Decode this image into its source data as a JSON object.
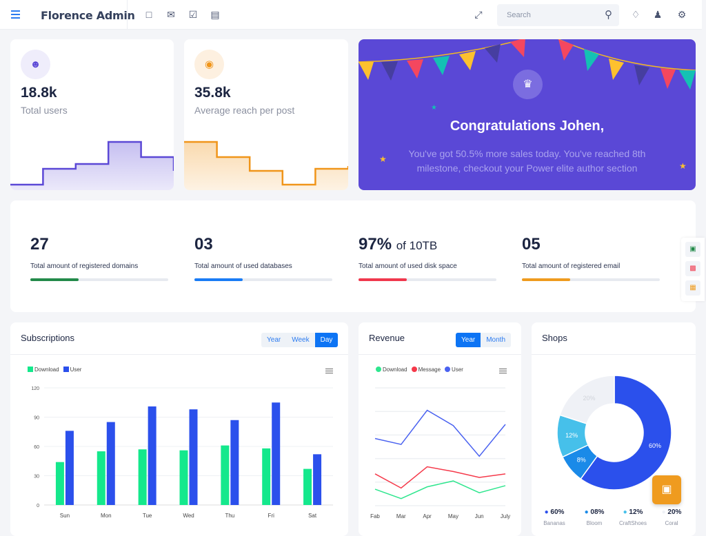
{
  "header": {
    "brand": "Florence Admin",
    "search_placeholder": "Search",
    "icons": [
      "menu-icon",
      "chat-icon",
      "mail-icon",
      "checkbox-icon",
      "calendar-icon",
      "fullscreen-icon",
      "search-icon",
      "bell-icon",
      "user-icon",
      "gear-icon"
    ]
  },
  "cards": [
    {
      "value": "18.8k",
      "label": "Total users",
      "color": "#5b48d6",
      "sparkline": [
        8,
        31,
        38,
        70,
        48,
        28
      ]
    },
    {
      "value": "35.8k",
      "label": "Average reach per post",
      "color": "#f0951a",
      "sparkline": [
        70,
        48,
        28,
        8,
        31,
        35
      ]
    }
  ],
  "banner": {
    "title": "Congratulations Johen,",
    "text": "You've got 50.5% more sales today. You've reached 8th milestone, checkout your Power elite author section",
    "color": "#5a48d6"
  },
  "stats": [
    {
      "value": "27",
      "suffix": "",
      "label": "Total amount of registered domains",
      "progress": 35,
      "color": "#238a4a"
    },
    {
      "value": "03",
      "suffix": "",
      "label": "Total amount of used databases",
      "progress": 35,
      "color": "#1a7cf5"
    },
    {
      "value": "97%",
      "suffix": "of 10TB",
      "label": "Total amount of used disk space",
      "progress": 35,
      "color": "#f0384d"
    },
    {
      "value": "05",
      "suffix": "",
      "label": "Total amount of registered email",
      "progress": 35,
      "color": "#ef9b1f"
    }
  ],
  "subscriptions": {
    "title": "Subscriptions",
    "tabs": [
      "Year",
      "Week",
      "Day"
    ],
    "active": "Day"
  },
  "revenue": {
    "title": "Revenue",
    "tabs": [
      "Year",
      "Month"
    ],
    "active": "Year"
  },
  "shops": {
    "title": "Shops"
  },
  "chart_data": [
    {
      "type": "bar",
      "categories": [
        "Sun",
        "Mon",
        "Tue",
        "Wed",
        "Thu",
        "Fri",
        "Sat"
      ],
      "series": [
        {
          "name": "Download",
          "color": "#14e88c",
          "values": [
            44,
            55,
            57,
            56,
            61,
            58,
            37
          ]
        },
        {
          "name": "User",
          "color": "#2b50ec",
          "values": [
            76,
            85,
            101,
            98,
            87,
            105,
            52
          ]
        }
      ],
      "ylim": [
        0,
        120
      ],
      "yticks": [
        0,
        30,
        60,
        90,
        120
      ],
      "grid": true,
      "legend": "top-left"
    },
    {
      "type": "line",
      "categories": [
        "Fab",
        "Mar",
        "Apr",
        "May",
        "Jun",
        "July"
      ],
      "series": [
        {
          "name": "Download",
          "color": "#2ee68e",
          "values": [
            14,
            6,
            16,
            21,
            11,
            17
          ]
        },
        {
          "name": "Message",
          "color": "#f5394a",
          "values": [
            27,
            15,
            33,
            29,
            24,
            27
          ]
        },
        {
          "name": "User",
          "color": "#4a62f0",
          "values": [
            57,
            52,
            81,
            68,
            42,
            69
          ]
        }
      ],
      "ylim": [
        0,
        100
      ],
      "grid": true,
      "legend": "top-left"
    },
    {
      "type": "pie",
      "donut": true,
      "slices": [
        {
          "label": "Bananas",
          "value": 60,
          "text": "60%",
          "legend_value": "60%",
          "color": "#2b50ec"
        },
        {
          "label": "Bloom",
          "value": 8,
          "text": "8%",
          "legend_value": "08%",
          "color": "#1a8ae8"
        },
        {
          "label": "CraftShoes",
          "value": 12,
          "text": "12%",
          "legend_value": "12%",
          "color": "#46c0ea"
        },
        {
          "label": "Coral",
          "value": 20,
          "text": "20%",
          "legend_value": "20%",
          "color": "#eff1f6"
        }
      ]
    }
  ]
}
